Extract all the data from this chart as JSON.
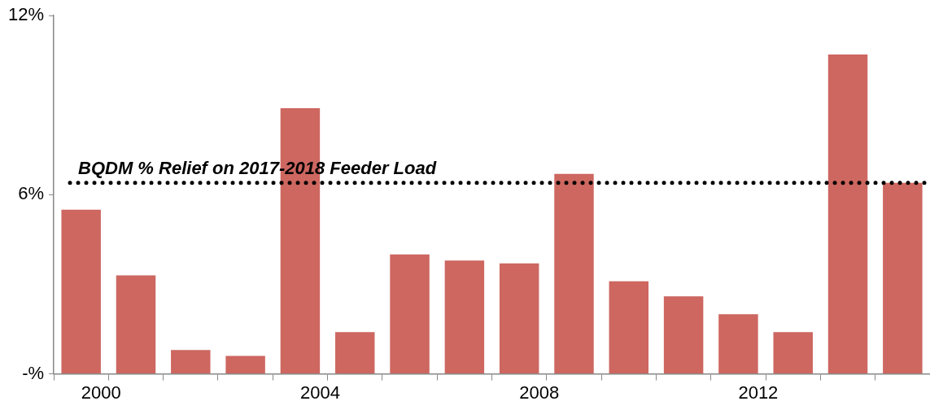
{
  "chart_data": {
    "type": "bar",
    "categories": [
      "2000",
      null,
      null,
      null,
      "2004",
      null,
      null,
      null,
      "2008",
      null,
      null,
      null,
      "2012",
      null,
      null,
      null
    ],
    "values": [
      5.5,
      3.3,
      0.8,
      0.6,
      8.9,
      1.4,
      4.0,
      3.8,
      3.7,
      6.7,
      3.1,
      2.6,
      2.0,
      1.4,
      10.7,
      6.4
    ],
    "color": "#cd6760",
    "ylim": [
      0,
      12
    ],
    "yticks": [
      {
        "value": 0,
        "label": "-%"
      },
      {
        "value": 6,
        "label": "6%"
      },
      {
        "value": 12,
        "label": "12%"
      }
    ],
    "ref_lines": [
      {
        "axis": "y",
        "value": 6.4,
        "label": "BQDM % Relief on 2017-2018 Feeder Load",
        "color": "#000000",
        "line_style": "dotted"
      }
    ]
  }
}
